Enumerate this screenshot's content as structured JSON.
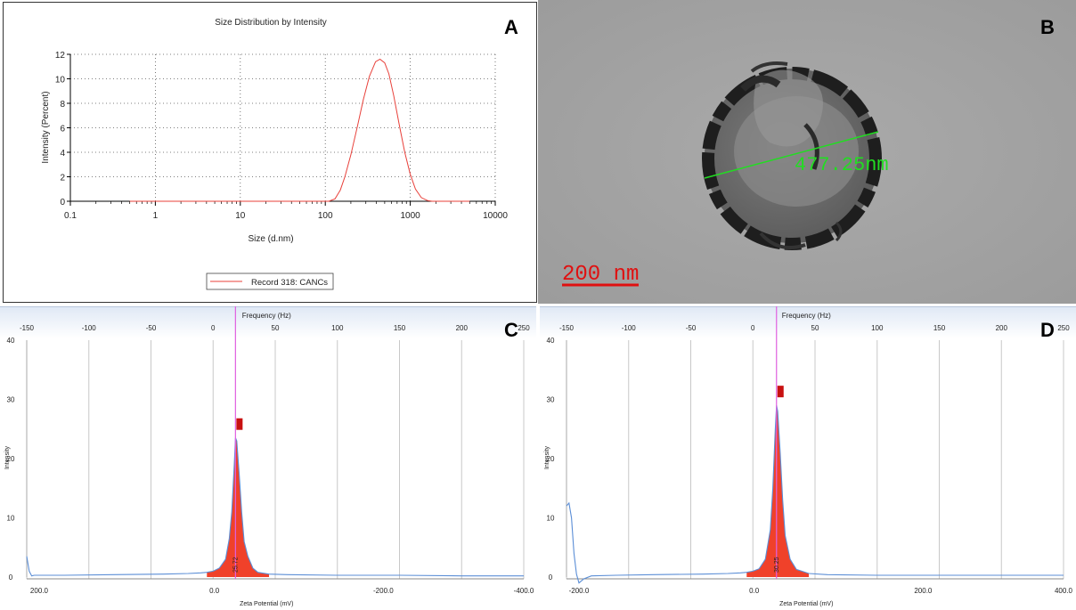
{
  "chart_data": [
    {
      "panel": "A",
      "type": "line",
      "title": "Size Distribution by Intensity",
      "xlabel": "Size (d.nm)",
      "ylabel": "Intensity (Percent)",
      "xscale": "log",
      "xlim": [
        0.1,
        10000
      ],
      "ylim": [
        0,
        12
      ],
      "xticks": [
        "0.1",
        "1",
        "10",
        "100",
        "1000",
        "10000"
      ],
      "yticks": [
        "0",
        "2",
        "4",
        "6",
        "8",
        "10",
        "12"
      ],
      "grid": true,
      "legend": "bottom-center",
      "series": [
        {
          "name": "Record 318: CANCs",
          "color": "#e8403a",
          "x": [
            0.5,
            90,
            110,
            130,
            150,
            170,
            200,
            240,
            280,
            330,
            390,
            440,
            500,
            560,
            640,
            740,
            860,
            1000,
            1150,
            1350,
            1600,
            1800,
            2000,
            5000
          ],
          "y": [
            0,
            0,
            0,
            0.2,
            0.9,
            2.0,
            3.8,
            6.2,
            8.3,
            10.2,
            11.4,
            11.6,
            11.3,
            10.4,
            8.6,
            6.3,
            4.0,
            2.2,
            1.0,
            0.3,
            0.05,
            0,
            0,
            0
          ]
        }
      ]
    },
    {
      "panel": "C",
      "type": "area",
      "xlabel": "Zeta Potential (mV)",
      "ylabel": "Intensity",
      "top_xlabel": "Frequency (Hz)",
      "top_ticks": [
        "-150",
        "-100",
        "-50",
        "0",
        "50",
        "100",
        "150",
        "200",
        "250"
      ],
      "bottom_ticks": [
        "200.0",
        "0.0",
        "-200.0",
        "-400.0"
      ],
      "yticks": [
        "0",
        "10",
        "20",
        "30",
        "40"
      ],
      "ylim": [
        -1,
        40
      ],
      "peak_label": "25.72",
      "peak_marker_color": "#c81010",
      "fill_color": "#f0412a",
      "line_color": "#5b8ed6",
      "peak_line_color": "#e060e0",
      "series": [
        {
          "x": [
            -150,
            -148,
            -146,
            -144,
            -140,
            -120,
            -80,
            -40,
            -20,
            -10,
            -5,
            0,
            5,
            10,
            13,
            15,
            17,
            18,
            19,
            21,
            23,
            25,
            28,
            32,
            36,
            45,
            60,
            100,
            150,
            200,
            250
          ],
          "y": [
            3.5,
            1.0,
            0.2,
            0.3,
            0.3,
            0.3,
            0.4,
            0.5,
            0.6,
            0.7,
            0.8,
            1.0,
            1.5,
            3.0,
            6.5,
            11.0,
            19.0,
            23.5,
            23.0,
            17.5,
            11.0,
            6.0,
            3.5,
            1.5,
            0.8,
            0.5,
            0.4,
            0.3,
            0.3,
            0.2,
            0.2
          ]
        }
      ]
    },
    {
      "panel": "D",
      "type": "area",
      "xlabel": "Zeta Potential (mV)",
      "ylabel": "Intensity",
      "top_xlabel": "Frequency (Hz)",
      "top_ticks": [
        "-150",
        "-100",
        "-50",
        "0",
        "50",
        "100",
        "150",
        "200",
        "250"
      ],
      "bottom_ticks": [
        "-200.0",
        "0.0",
        "200.0",
        "400.0"
      ],
      "yticks": [
        "0",
        "10",
        "20",
        "30",
        "40"
      ],
      "ylim": [
        -1,
        40
      ],
      "peak_label": "30.25",
      "peak_marker_color": "#c81010",
      "fill_color": "#f0412a",
      "line_color": "#5b8ed6",
      "peak_line_color": "#e060e0",
      "series": [
        {
          "x": [
            -150,
            -148,
            -146,
            -144,
            -142,
            -140,
            -136,
            -130,
            -110,
            -80,
            -40,
            -20,
            -10,
            -5,
            0,
            5,
            10,
            14,
            16,
            18,
            19,
            20,
            22,
            24,
            26,
            30,
            35,
            45,
            60,
            100,
            150,
            200,
            250
          ],
          "y": [
            12.0,
            12.5,
            10.0,
            4.0,
            0.5,
            -1.0,
            -0.3,
            0.2,
            0.3,
            0.4,
            0.5,
            0.6,
            0.7,
            0.8,
            1.0,
            1.4,
            3.0,
            8.0,
            15.0,
            25.0,
            29.0,
            28.0,
            21.0,
            13.0,
            7.0,
            3.0,
            1.3,
            0.6,
            0.4,
            0.3,
            0.3,
            0.3,
            0.3
          ]
        }
      ]
    }
  ],
  "labels": {
    "a": "A",
    "b": "B",
    "c": "C",
    "d": "D"
  },
  "tem": {
    "measurement": "477.25nm",
    "scale_bar": "200 nm",
    "measure_color": "#22dd22",
    "scale_color": "#e01010"
  }
}
